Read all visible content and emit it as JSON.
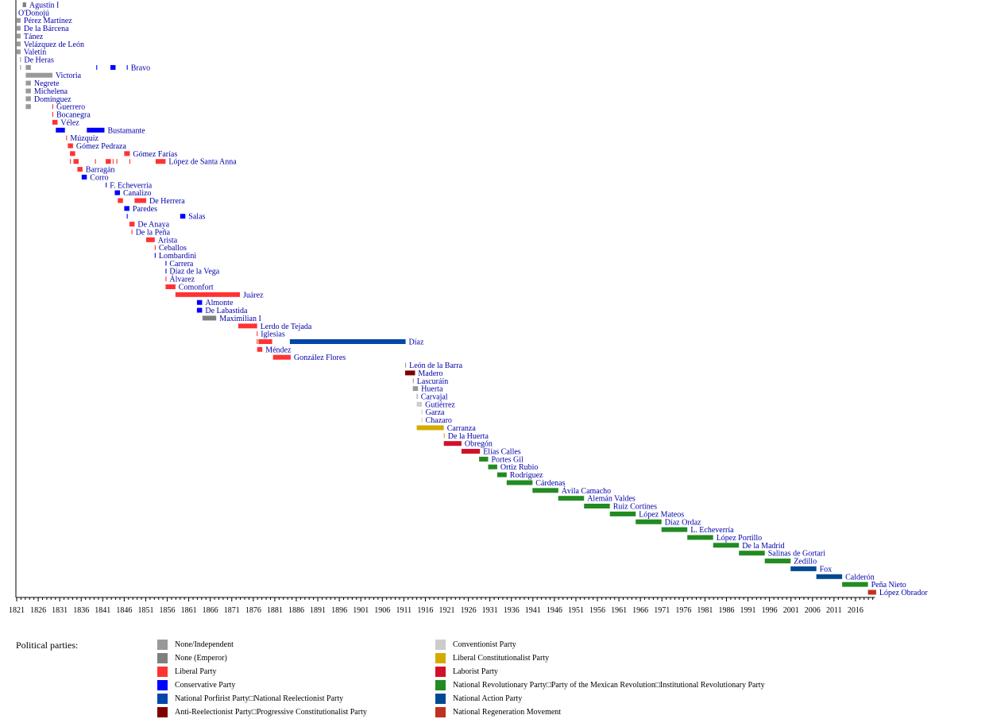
{
  "chart_data": {
    "type": "timeline",
    "title": "",
    "xlabel": "",
    "ylabel": "",
    "xlim": [
      1821,
      2020.5
    ],
    "x_ticks": [
      1821,
      1826,
      1831,
      1836,
      1841,
      1846,
      1851,
      1856,
      1861,
      1866,
      1871,
      1876,
      1881,
      1886,
      1891,
      1896,
      1901,
      1906,
      1911,
      1916,
      1921,
      1926,
      1931,
      1936,
      1941,
      1946,
      1951,
      1956,
      1961,
      1966,
      1971,
      1976,
      1981,
      1986,
      1991,
      1996,
      2001,
      2006,
      2011,
      2016
    ],
    "legend_title": "Political parties:",
    "parties": [
      {
        "key": "none",
        "name": "None/Independent",
        "color": "#999999"
      },
      {
        "key": "emperor",
        "name": "None (Emperor)",
        "color": "#7f7f7f"
      },
      {
        "key": "liberal",
        "name": "Liberal Party",
        "color": "#ff3333"
      },
      {
        "key": "conservative",
        "name": "Conservative Party",
        "color": "#0000ff"
      },
      {
        "key": "porfirist",
        "name": "National Porfirist Party□National Reelectionist Party",
        "color": "#0047ab"
      },
      {
        "key": "antireelection",
        "name": "Anti-Reelectionist Party□Progressive Constitutionalist Party",
        "color": "#800000"
      },
      {
        "key": "conventionist",
        "name": "Conventionist Party",
        "color": "#cccccc"
      },
      {
        "key": "libconst",
        "name": "Liberal Constitutionalist Party",
        "color": "#d4aa00"
      },
      {
        "key": "laborist",
        "name": "Laborist Party",
        "color": "#d2102a"
      },
      {
        "key": "pri",
        "name": "National Revolutionary Party□Party of the Mexican Revolution□Institutional Revolutionary Party",
        "color": "#228b22"
      },
      {
        "key": "pan",
        "name": "National Action Party",
        "color": "#004990"
      },
      {
        "key": "morena",
        "name": "National Regeneration Movement",
        "color": "#c0311f"
      }
    ],
    "rows": [
      {
        "name": "Agustín I",
        "terms": [
          [
            1822.4,
            1823.2,
            "emperor"
          ]
        ]
      },
      {
        "name": "O'Donojú",
        "terms": []
      },
      {
        "name": "Pérez Martínez",
        "terms": [
          [
            1821.0,
            1821.9,
            "none"
          ]
        ]
      },
      {
        "name": "De la Bárcena",
        "terms": [
          [
            1821.0,
            1821.9,
            "none"
          ]
        ]
      },
      {
        "name": "Tánez",
        "terms": [
          [
            1821.0,
            1821.9,
            "none"
          ]
        ]
      },
      {
        "name": "Velázquez de León",
        "terms": [
          [
            1821.0,
            1821.9,
            "none"
          ]
        ]
      },
      {
        "name": "Valetín",
        "terms": [
          [
            1821.0,
            1821.9,
            "none"
          ]
        ]
      },
      {
        "name": "De Heras",
        "terms": [
          [
            1821.8,
            1822.0,
            "none"
          ]
        ]
      },
      {
        "name": "Bravo",
        "terms": [
          [
            1821.8,
            1822.0,
            "none"
          ],
          [
            1823.1,
            1824.3,
            "none"
          ],
          [
            1839.5,
            1839.7,
            "conservative"
          ],
          [
            1842.8,
            1844.0,
            "conservative"
          ],
          [
            1846.6,
            1846.8,
            "conservative"
          ]
        ]
      },
      {
        "name": "Victoria",
        "terms": [
          [
            1823.1,
            1829.3,
            "none"
          ]
        ]
      },
      {
        "name": "Negrete",
        "terms": [
          [
            1823.1,
            1824.3,
            "none"
          ]
        ]
      },
      {
        "name": "Michelena",
        "terms": [
          [
            1823.1,
            1824.3,
            "none"
          ]
        ]
      },
      {
        "name": "Domínguez",
        "terms": [
          [
            1823.1,
            1824.3,
            "none"
          ]
        ]
      },
      {
        "name": "Guerrero",
        "terms": [
          [
            1823.1,
            1824.3,
            "none"
          ],
          [
            1829.3,
            1829.5,
            "liberal"
          ]
        ]
      },
      {
        "name": "Bocanegra",
        "terms": [
          [
            1829.3,
            1829.5,
            "liberal"
          ]
        ]
      },
      {
        "name": "Vélez",
        "terms": [
          [
            1829.3,
            1830.5,
            "liberal"
          ]
        ]
      },
      {
        "name": "Bustamante",
        "terms": [
          [
            1830.1,
            1832.2,
            "conservative"
          ],
          [
            1837.3,
            1841.4,
            "conservative"
          ]
        ]
      },
      {
        "name": "Múzquiz",
        "terms": [
          [
            1832.5,
            1832.7,
            "liberal"
          ]
        ]
      },
      {
        "name": "Gómez Pedraza",
        "terms": [
          [
            1832.9,
            1834.1,
            "liberal"
          ]
        ]
      },
      {
        "name": "Gómez Farías",
        "terms": [
          [
            1833.4,
            1834.6,
            "liberal"
          ],
          [
            1846.0,
            1847.3,
            "liberal"
          ]
        ]
      },
      {
        "name": "López de Santa Anna",
        "terms": [
          [
            1833.4,
            1833.6,
            "liberal"
          ],
          [
            1834.2,
            1835.4,
            "liberal"
          ],
          [
            1839.2,
            1839.4,
            "liberal"
          ],
          [
            1841.7,
            1842.9,
            "liberal"
          ],
          [
            1843.3,
            1843.5,
            "liberal"
          ],
          [
            1844.2,
            1844.4,
            "liberal"
          ],
          [
            1847.2,
            1847.4,
            "liberal"
          ],
          [
            1853.3,
            1855.6,
            "liberal"
          ]
        ]
      },
      {
        "name": "Barragán",
        "terms": [
          [
            1835.1,
            1836.3,
            "liberal"
          ]
        ]
      },
      {
        "name": "Corro",
        "terms": [
          [
            1836.1,
            1837.3,
            "conservative"
          ]
        ]
      },
      {
        "name": "F. Echeverría",
        "terms": [
          [
            1841.7,
            1841.9,
            "conservative"
          ]
        ]
      },
      {
        "name": "Canalizo",
        "terms": [
          [
            1843.8,
            1845.0,
            "conservative"
          ]
        ]
      },
      {
        "name": "De Herrera",
        "terms": [
          [
            1844.5,
            1845.7,
            "liberal"
          ],
          [
            1848.4,
            1851.1,
            "liberal"
          ]
        ]
      },
      {
        "name": "Paredes",
        "terms": [
          [
            1846.0,
            1847.2,
            "conservative"
          ]
        ]
      },
      {
        "name": "Salas",
        "terms": [
          [
            1846.6,
            1846.8,
            "conservative"
          ],
          [
            1859.0,
            1860.2,
            "conservative"
          ]
        ]
      },
      {
        "name": "De Anaya",
        "terms": [
          [
            1847.2,
            1848.4,
            "liberal"
          ]
        ]
      },
      {
        "name": "De la Peña",
        "terms": [
          [
            1847.7,
            1847.9,
            "liberal"
          ]
        ]
      },
      {
        "name": "Arista",
        "terms": [
          [
            1851.1,
            1853.1,
            "liberal"
          ]
        ]
      },
      {
        "name": "Ceballos",
        "terms": [
          [
            1853.1,
            1853.3,
            "liberal"
          ]
        ]
      },
      {
        "name": "Lombardini",
        "terms": [
          [
            1853.1,
            1853.3,
            "conservative"
          ]
        ]
      },
      {
        "name": "Carrera",
        "terms": [
          [
            1855.6,
            1855.8,
            "conservative"
          ]
        ]
      },
      {
        "name": "Díaz de la Vega",
        "terms": [
          [
            1855.6,
            1855.8,
            "conservative"
          ]
        ]
      },
      {
        "name": "Álvarez",
        "terms": [
          [
            1855.6,
            1855.8,
            "liberal"
          ]
        ]
      },
      {
        "name": "Comonfort",
        "terms": [
          [
            1855.6,
            1857.9,
            "liberal"
          ]
        ]
      },
      {
        "name": "Juárez",
        "terms": [
          [
            1857.9,
            1872.9,
            "liberal"
          ]
        ]
      },
      {
        "name": "Almonte",
        "terms": [
          [
            1862.9,
            1864.1,
            "conservative"
          ]
        ]
      },
      {
        "name": "De Labastida",
        "terms": [
          [
            1862.9,
            1864.1,
            "conservative"
          ]
        ]
      },
      {
        "name": "Maximilian I",
        "terms": [
          [
            1864.2,
            1867.4,
            "emperor"
          ]
        ]
      },
      {
        "name": "Lerdo de Tejada",
        "terms": [
          [
            1872.5,
            1876.9,
            "liberal"
          ]
        ]
      },
      {
        "name": "Iglesias",
        "terms": [
          [
            1876.8,
            1877.0,
            "liberal"
          ]
        ]
      },
      {
        "name": "Díaz",
        "terms": [
          [
            1876.8,
            1877.0,
            "liberal"
          ],
          [
            1877.2,
            1880.4,
            "liberal"
          ],
          [
            1884.5,
            1911.4,
            "porfirist"
          ]
        ]
      },
      {
        "name": "Méndez",
        "terms": [
          [
            1876.9,
            1878.1,
            "liberal"
          ]
        ]
      },
      {
        "name": "González Flores",
        "terms": [
          [
            1880.6,
            1884.7,
            "liberal"
          ]
        ]
      },
      {
        "name": "León de la Barra",
        "terms": [
          [
            1911.3,
            1911.5,
            "none"
          ]
        ]
      },
      {
        "name": "Madero",
        "terms": [
          [
            1911.3,
            1913.6,
            "antireelection"
          ]
        ]
      },
      {
        "name": "Lascuráin",
        "terms": [
          [
            1913.1,
            1913.3,
            "none"
          ]
        ]
      },
      {
        "name": "Huerta",
        "terms": [
          [
            1913.1,
            1914.3,
            "none"
          ]
        ]
      },
      {
        "name": "Carvajal",
        "terms": [
          [
            1914.0,
            1914.2,
            "none"
          ]
        ]
      },
      {
        "name": "Gutiérrez",
        "terms": [
          [
            1914.0,
            1915.2,
            "conventionist"
          ]
        ]
      },
      {
        "name": "Garza",
        "terms": [
          [
            1915.1,
            1915.3,
            "conventionist"
          ]
        ]
      },
      {
        "name": "Chazaro",
        "terms": [
          [
            1915.1,
            1915.3,
            "conventionist"
          ]
        ]
      },
      {
        "name": "Carranza",
        "terms": [
          [
            1914.0,
            1920.3,
            "libconst"
          ]
        ]
      },
      {
        "name": "De la Huerta",
        "terms": [
          [
            1920.3,
            1920.5,
            "libconst"
          ]
        ]
      },
      {
        "name": "Obregón",
        "terms": [
          [
            1920.3,
            1924.4,
            "laborist"
          ]
        ]
      },
      {
        "name": "Elías Calles",
        "terms": [
          [
            1924.4,
            1928.7,
            "laborist"
          ]
        ]
      },
      {
        "name": "Portes Gil",
        "terms": [
          [
            1928.5,
            1930.6,
            "pri"
          ]
        ]
      },
      {
        "name": "Ortiz Rubio",
        "terms": [
          [
            1930.6,
            1932.7,
            "pri"
          ]
        ]
      },
      {
        "name": "Rodríguez",
        "terms": [
          [
            1932.7,
            1934.9,
            "pri"
          ]
        ]
      },
      {
        "name": "Cárdenas",
        "terms": [
          [
            1934.9,
            1940.9,
            "pri"
          ]
        ]
      },
      {
        "name": "Ávila Camacho",
        "terms": [
          [
            1940.9,
            1946.9,
            "pri"
          ]
        ]
      },
      {
        "name": "Alemán Valdes",
        "terms": [
          [
            1946.9,
            1952.9,
            "pri"
          ]
        ]
      },
      {
        "name": "Ruiz Cortines",
        "terms": [
          [
            1952.9,
            1958.9,
            "pri"
          ]
        ]
      },
      {
        "name": "López Mateos",
        "terms": [
          [
            1958.9,
            1964.9,
            "pri"
          ]
        ]
      },
      {
        "name": "Díaz Ordaz",
        "terms": [
          [
            1964.9,
            1970.9,
            "pri"
          ]
        ]
      },
      {
        "name": "L. Echeverría",
        "terms": [
          [
            1970.9,
            1976.9,
            "pri"
          ]
        ]
      },
      {
        "name": "López Portillo",
        "terms": [
          [
            1976.9,
            1982.9,
            "pri"
          ]
        ]
      },
      {
        "name": "De la Madrid",
        "terms": [
          [
            1982.9,
            1988.9,
            "pri"
          ]
        ]
      },
      {
        "name": "Salinas de Gortari",
        "terms": [
          [
            1988.9,
            1994.9,
            "pri"
          ]
        ]
      },
      {
        "name": "Zedillo",
        "terms": [
          [
            1994.9,
            2000.9,
            "pri"
          ]
        ]
      },
      {
        "name": "Fox",
        "terms": [
          [
            2000.9,
            2006.9,
            "pan"
          ]
        ]
      },
      {
        "name": "Calderón",
        "terms": [
          [
            2006.9,
            2012.9,
            "pan"
          ]
        ]
      },
      {
        "name": "Peña Nieto",
        "terms": [
          [
            2012.9,
            2018.9,
            "pri"
          ]
        ]
      },
      {
        "name": "López Obrador",
        "terms": [
          [
            2018.9,
            2020.8,
            "morena"
          ]
        ]
      }
    ]
  }
}
